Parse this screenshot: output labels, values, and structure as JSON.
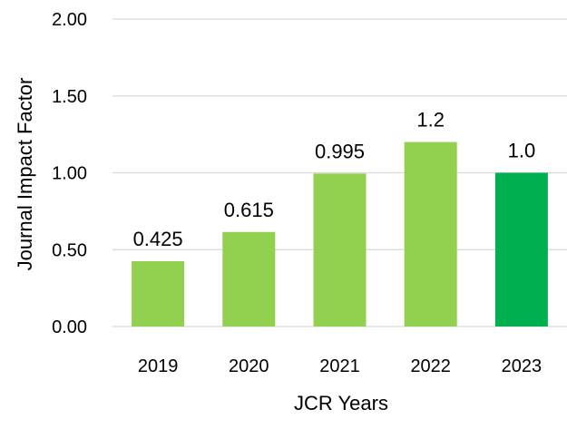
{
  "chart_data": {
    "type": "bar",
    "title": "",
    "xlabel": "JCR Years",
    "ylabel": "Journal Impact Factor",
    "categories": [
      "2019",
      "2020",
      "2021",
      "2022",
      "2023"
    ],
    "values": [
      0.425,
      0.615,
      0.995,
      1.2,
      1.0
    ],
    "data_labels": [
      "0.425",
      "0.615",
      "0.995",
      "1.2",
      "1.0"
    ],
    "ylim": [
      0,
      2
    ],
    "yticks": [
      0,
      0.5,
      1.0,
      1.5,
      2.0
    ],
    "ytick_labels": [
      "0.00",
      "0.50",
      "1.00",
      "1.50",
      "2.00"
    ],
    "grid": "horizontal",
    "legend": "none",
    "colors": {
      "bar": "#92d050",
      "highlight_bar": "#00b050",
      "gridline": "#d9d9d9",
      "text": "#000000"
    },
    "highlight_index": 4
  }
}
